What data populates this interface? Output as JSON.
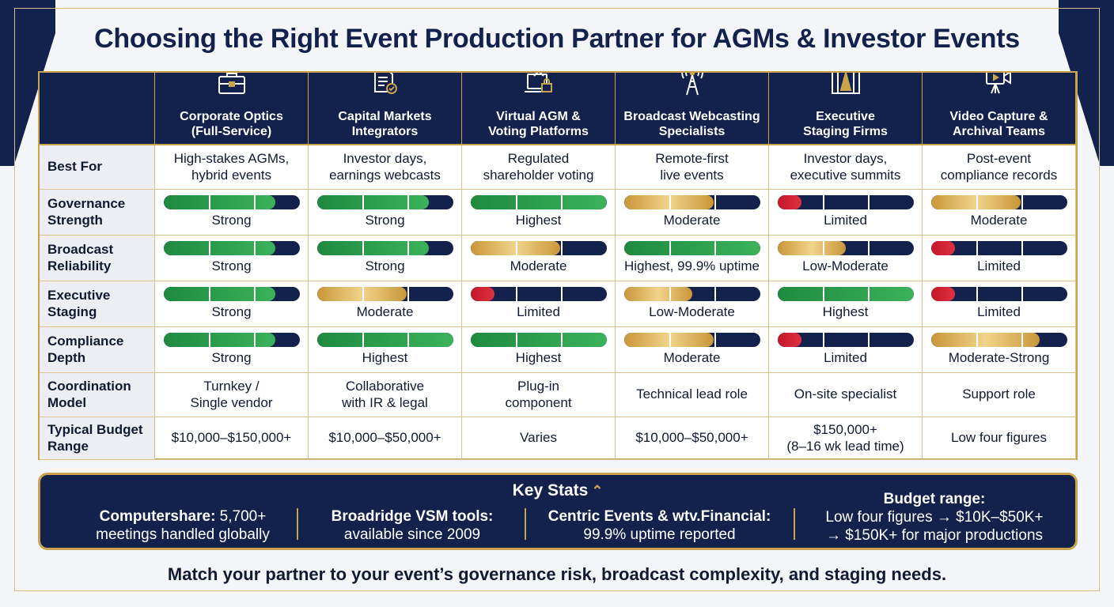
{
  "title": "Choosing the Right Event Production Partner for AGMs & Investor Events",
  "columns": [
    {
      "name": "Corporate Optics (Full-Service)",
      "line1": "Corporate Optics",
      "line2": "(Full-Service)",
      "icon": "briefcase-icon"
    },
    {
      "name": "Capital Markets Integrators",
      "line1": "Capital Markets",
      "line2": "Integrators",
      "icon": "document-check-icon"
    },
    {
      "name": "Virtual AGM & Voting Platforms",
      "line1": "Virtual AGM &",
      "line2": "Voting Platforms",
      "icon": "laptop-lock-icon"
    },
    {
      "name": "Broadcast Webcasting Specialists",
      "line1": "Broadcast Webcasting",
      "line2": "Specialists",
      "icon": "broadcast-tower-icon"
    },
    {
      "name": "Executive Staging Firms",
      "line1": "Executive",
      "line2": "Staging Firms",
      "icon": "stage-spotlight-icon"
    },
    {
      "name": "Video Capture & Archival Teams",
      "line1": "Video Capture &",
      "line2": "Archival Teams",
      "icon": "video-camera-icon"
    }
  ],
  "rows": {
    "best_for": {
      "label": "Best For",
      "cells": [
        [
          "High-stakes AGMs,",
          "hybrid events"
        ],
        [
          "Investor days,",
          "earnings webcasts"
        ],
        [
          "Regulated",
          "shareholder voting"
        ],
        [
          "Remote-first",
          "live events"
        ],
        [
          "Investor days,",
          "executive summits"
        ],
        [
          "Post-event",
          "compliance records"
        ]
      ]
    },
    "ratings": [
      {
        "label_line1": "Governance",
        "label_line2": "Strength",
        "cells": [
          {
            "text": "Strong",
            "level": 0.82,
            "color": "green"
          },
          {
            "text": "Strong",
            "level": 0.82,
            "color": "green"
          },
          {
            "text": "Highest",
            "level": 1.0,
            "color": "green"
          },
          {
            "text": "Moderate",
            "level": 0.66,
            "color": "gold"
          },
          {
            "text": "Limited",
            "level": 0.18,
            "color": "red"
          },
          {
            "text": "Moderate",
            "level": 0.66,
            "color": "gold"
          }
        ]
      },
      {
        "label_line1": "Broadcast",
        "label_line2": "Reliability",
        "cells": [
          {
            "text": "Strong",
            "level": 0.82,
            "color": "green"
          },
          {
            "text": "Strong",
            "level": 0.82,
            "color": "green"
          },
          {
            "text": "Moderate",
            "level": 0.66,
            "color": "gold"
          },
          {
            "text": "Highest, 99.9% uptime",
            "level": 1.0,
            "color": "green"
          },
          {
            "text": "Low-Moderate",
            "level": 0.5,
            "color": "gold"
          },
          {
            "text": "Limited",
            "level": 0.18,
            "color": "red"
          }
        ]
      },
      {
        "label_line1": "Executive",
        "label_line2": "Staging",
        "cells": [
          {
            "text": "Strong",
            "level": 0.82,
            "color": "green"
          },
          {
            "text": "Moderate",
            "level": 0.66,
            "color": "gold"
          },
          {
            "text": "Limited",
            "level": 0.18,
            "color": "red"
          },
          {
            "text": "Low-Moderate",
            "level": 0.5,
            "color": "gold"
          },
          {
            "text": "Highest",
            "level": 1.0,
            "color": "green"
          },
          {
            "text": "Limited",
            "level": 0.18,
            "color": "red"
          }
        ]
      },
      {
        "label_line1": "Compliance",
        "label_line2": "Depth",
        "cells": [
          {
            "text": "Strong",
            "level": 0.82,
            "color": "green"
          },
          {
            "text": "Highest",
            "level": 1.0,
            "color": "green"
          },
          {
            "text": "Highest",
            "level": 1.0,
            "color": "green"
          },
          {
            "text": "Moderate",
            "level": 0.66,
            "color": "gold"
          },
          {
            "text": "Limited",
            "level": 0.18,
            "color": "red"
          },
          {
            "text": "Moderate-Strong",
            "level": 0.8,
            "color": "gold"
          }
        ]
      }
    ],
    "coordination": {
      "label_line1": "Coordination",
      "label_line2": "Model",
      "cells": [
        [
          "Turnkey /",
          "Single vendor"
        ],
        [
          "Collaborative",
          "with IR & legal"
        ],
        [
          "Plug-in",
          "component"
        ],
        [
          "Technical lead role",
          ""
        ],
        [
          "On-site specialist",
          ""
        ],
        [
          "Support role",
          ""
        ]
      ]
    },
    "budget": {
      "label_line1": "Typical Budget",
      "label_line2": "Range",
      "cells": [
        [
          "$10,000–$150,000+",
          ""
        ],
        [
          "$10,000–$50,000+",
          ""
        ],
        [
          "Varies",
          ""
        ],
        [
          "$10,000–$50,000+",
          ""
        ],
        [
          "$150,000+",
          "(8–16 wk lead time)"
        ],
        [
          "Low four figures",
          ""
        ]
      ]
    }
  },
  "key_stats": {
    "title": "Key Stats",
    "items": [
      {
        "bold": "Computershare:",
        "rest": " 5,700+",
        "line2": "meetings handled globally"
      },
      {
        "bold": "Broadridge VSM tools:",
        "rest": "",
        "line2": "available since 2009"
      },
      {
        "bold": "Centric Events & wtv.Financial:",
        "rest": "",
        "line2": "99.9% uptime reported"
      },
      {
        "bold": "Budget range:",
        "rest": "",
        "line2": "Low four figures → $10K–$50K+",
        "line3": "→ $150K+ for major productions"
      }
    ]
  },
  "footer": "Match your partner to your event’s governance risk, broadcast complexity, and staging needs.",
  "colors": {
    "navy": "#13224d",
    "gold": "#c9a44c",
    "green": "#2e9e4e",
    "red": "#d0202f"
  }
}
